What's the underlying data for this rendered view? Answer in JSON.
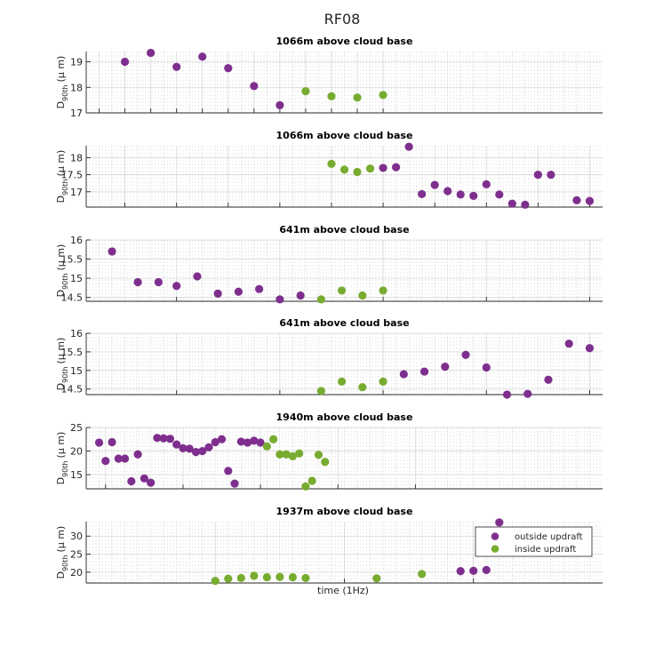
{
  "figure": {
    "title": "RF08",
    "xlabel": "time (1Hz)",
    "ylabel_main": "D",
    "ylabel_sub": "90th",
    "ylabel_unit": "(μ m)",
    "colors": {
      "outside": "#7e2f8e",
      "inside": "#77ac30",
      "axis": "#262626",
      "grid": "#b0b0b0"
    }
  },
  "legend": {
    "entries": [
      {
        "label": "outside updraft",
        "series": "outside"
      },
      {
        "label": "inside updraft",
        "series": "inside"
      }
    ]
  },
  "chart_data": [
    {
      "type": "scatter",
      "title": "1066m above cloud base",
      "xlabel": "",
      "ylabel": "D90th (μ m)",
      "xlim": [
        0,
        20
      ],
      "ylim": [
        17,
        19.4
      ],
      "yticks": [
        17,
        18,
        19
      ],
      "ytick_labels": [
        "17",
        "18",
        "19"
      ],
      "xticks": [
        0.5,
        1.5,
        2.5,
        3.5,
        4.5,
        5.5,
        6.5,
        7.5,
        8.5,
        9.5,
        10.5,
        11.5
      ],
      "series": [
        {
          "name": "outside updraft",
          "x": [
            1.5,
            2.5,
            3.5,
            4.5,
            5.5,
            6.5,
            7.5
          ],
          "y": [
            19.0,
            19.35,
            18.8,
            19.2,
            18.75,
            18.05,
            17.3
          ]
        },
        {
          "name": "inside updraft",
          "x": [
            8.5,
            9.5,
            10.5,
            11.5
          ],
          "y": [
            17.85,
            17.65,
            17.6,
            17.7
          ]
        }
      ]
    },
    {
      "type": "scatter",
      "title": "1066m above cloud base",
      "xlabel": "",
      "ylabel": "D90th (μ m)",
      "xlim": [
        0,
        20
      ],
      "ylim": [
        16.55,
        18.35
      ],
      "yticks": [
        17,
        17.5,
        18
      ],
      "ytick_labels": [
        "17",
        "17.5",
        "18"
      ],
      "xticks": [
        1.5,
        3.5,
        5.5,
        7.5,
        9.5,
        11.5,
        13.5,
        15.5,
        17.5,
        19.5
      ],
      "series": [
        {
          "name": "outside updraft",
          "x": [
            11.5,
            12.0,
            12.5,
            13.0,
            13.5,
            14.0,
            14.5,
            15.0,
            15.5,
            16.0,
            16.5,
            17.0,
            17.5,
            18.0,
            19.0,
            19.5
          ],
          "y": [
            17.7,
            17.72,
            18.32,
            16.93,
            17.2,
            17.02,
            16.92,
            16.88,
            17.22,
            16.92,
            16.65,
            16.62,
            17.5,
            17.5,
            16.75,
            16.73
          ]
        },
        {
          "name": "inside updraft",
          "x": [
            9.5,
            10.0,
            10.5,
            11.0
          ],
          "y": [
            17.82,
            17.65,
            17.58,
            17.68
          ]
        }
      ]
    },
    {
      "type": "scatter",
      "title": "641m above cloud base",
      "xlabel": "",
      "ylabel": "D90th (μ m)",
      "xlim": [
        0,
        20
      ],
      "ylim": [
        14.4,
        16.0
      ],
      "yticks": [
        14.5,
        15,
        15.5,
        16
      ],
      "ytick_labels": [
        "14.5",
        "15",
        "15.5",
        "16"
      ],
      "xticks": [
        3.5,
        7.5,
        11.5,
        15.5,
        19.5
      ],
      "series": [
        {
          "name": "outside updraft",
          "x": [
            1.0,
            2.0,
            2.8,
            3.5,
            4.3,
            5.1,
            5.9,
            6.7,
            7.5,
            8.3
          ],
          "y": [
            15.7,
            14.9,
            14.9,
            14.8,
            15.05,
            14.6,
            14.65,
            14.72,
            14.45,
            14.55
          ]
        },
        {
          "name": "inside updraft",
          "x": [
            9.1,
            9.9,
            10.7,
            11.5
          ],
          "y": [
            14.45,
            14.68,
            14.55,
            14.68
          ]
        }
      ]
    },
    {
      "type": "scatter",
      "title": "641m above cloud base",
      "xlabel": "",
      "ylabel": "D90th (μ m)",
      "xlim": [
        0,
        20
      ],
      "ylim": [
        14.35,
        16.0
      ],
      "yticks": [
        14.5,
        15,
        15.5,
        16
      ],
      "ytick_labels": [
        "14.5",
        "15",
        "15.5",
        "16"
      ],
      "xticks": [
        3.5,
        7.5,
        11.5,
        15.5,
        19.5
      ],
      "series": [
        {
          "name": "outside updraft",
          "x": [
            12.3,
            13.1,
            13.9,
            14.7,
            15.5,
            16.3,
            17.1,
            17.9,
            18.7,
            19.5
          ],
          "y": [
            14.9,
            14.97,
            15.1,
            15.42,
            15.08,
            14.35,
            14.37,
            14.75,
            15.72,
            15.6
          ]
        },
        {
          "name": "inside updraft",
          "x": [
            9.1,
            9.9,
            10.7,
            11.5
          ],
          "y": [
            14.45,
            14.7,
            14.55,
            14.7
          ]
        }
      ]
    },
    {
      "type": "scatter",
      "title": "1940m above cloud base",
      "xlabel": "",
      "ylabel": "D90th (μ m)",
      "xlim": [
        0,
        40
      ],
      "ylim": [
        12,
        25
      ],
      "yticks": [
        15,
        20,
        25
      ],
      "ytick_labels": [
        "15",
        "20",
        "25"
      ],
      "xticks": [
        1.5,
        7.5,
        13.5,
        19.5,
        25.5
      ],
      "series": [
        {
          "name": "outside updraft",
          "x": [
            1.0,
            1.5,
            2.0,
            2.5,
            3.0,
            3.5,
            4.0,
            4.5,
            5.0,
            5.5,
            6.0,
            6.5,
            7.0,
            7.5,
            8.0,
            8.5,
            9.0,
            9.5,
            10.0,
            10.5,
            11.0,
            11.5,
            12.0,
            12.5,
            13.0,
            13.5
          ],
          "y": [
            21.8,
            17.9,
            21.9,
            18.4,
            18.4,
            13.6,
            19.3,
            14.2,
            13.3,
            22.8,
            22.7,
            22.6,
            21.4,
            20.6,
            20.5,
            19.8,
            20.0,
            20.8,
            21.9,
            22.5,
            15.8,
            13.1,
            22.0,
            21.8,
            22.2,
            21.8
          ]
        },
        {
          "name": "inside updraft",
          "x": [
            14.0,
            14.5,
            15.0,
            15.5,
            16.0,
            16.5,
            17.0,
            17.5,
            18.0,
            18.5
          ],
          "y": [
            21.0,
            22.5,
            19.3,
            19.3,
            18.9,
            19.5,
            12.5,
            13.7,
            19.2,
            17.7
          ]
        }
      ]
    },
    {
      "type": "scatter",
      "title": "1937m above cloud base",
      "xlabel": "time (1Hz)",
      "ylabel": "D90th (μ m)",
      "xlim": [
        0,
        40
      ],
      "ylim": [
        17,
        34
      ],
      "yticks": [
        20,
        25,
        30
      ],
      "ytick_labels": [
        "20",
        "25",
        "30"
      ],
      "xticks": [
        10,
        20,
        30
      ],
      "series": [
        {
          "name": "outside updraft",
          "x": [
            29.0,
            30.0,
            31.0,
            32.0
          ],
          "y": [
            20.3,
            20.4,
            20.6,
            33.8
          ]
        },
        {
          "name": "inside updraft",
          "x": [
            10.0,
            11.0,
            12.0,
            13.0,
            14.0,
            15.0,
            16.0,
            17.0,
            22.5,
            26.0
          ],
          "y": [
            17.6,
            18.2,
            18.4,
            19.0,
            18.6,
            18.7,
            18.6,
            18.4,
            18.3,
            19.5
          ]
        }
      ]
    }
  ]
}
